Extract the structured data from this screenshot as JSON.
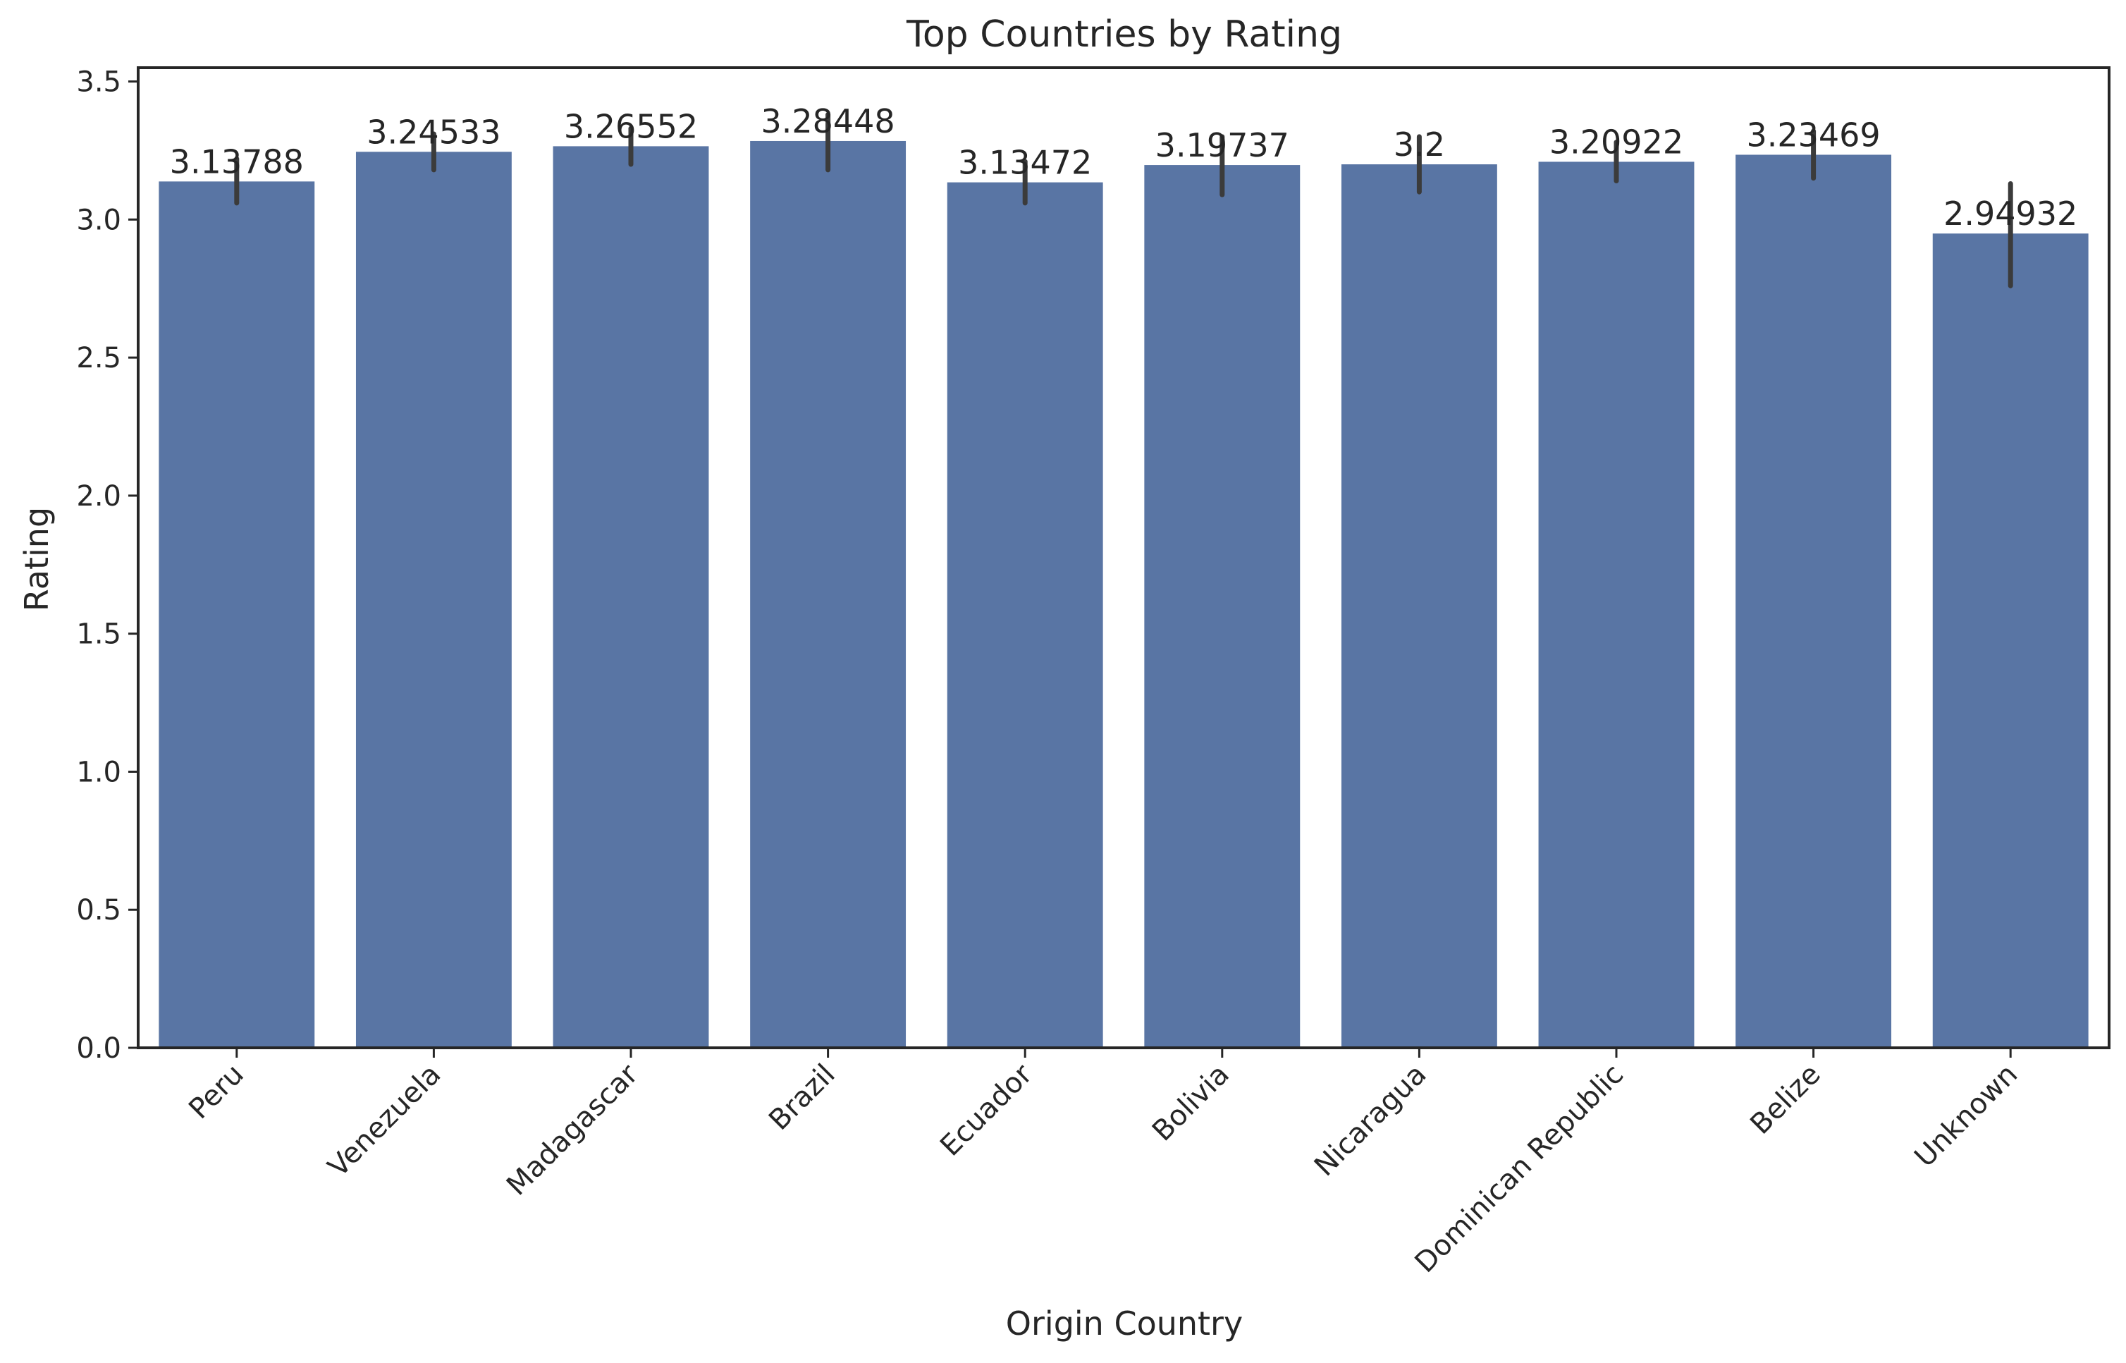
{
  "chart_data": {
    "type": "bar",
    "title": "Top Countries by Rating",
    "xlabel": "Origin Country",
    "ylabel": "Rating",
    "categories": [
      "Peru",
      "Venezuela",
      "Madagascar",
      "Brazil",
      "Ecuador",
      "Bolivia",
      "Nicaragua",
      "Dominican Republic",
      "Belize",
      "Unknown"
    ],
    "values": [
      3.13788,
      3.24533,
      3.26552,
      3.28448,
      3.13472,
      3.19737,
      3.2,
      3.20922,
      3.23469,
      2.94932
    ],
    "value_labels": [
      "3.13788",
      "3.24533",
      "3.26552",
      "3.28448",
      "3.13472",
      "3.19737",
      "3.2",
      "3.20922",
      "3.23469",
      "2.94932"
    ],
    "error_bars": [
      [
        3.06,
        3.22
      ],
      [
        3.18,
        3.31
      ],
      [
        3.2,
        3.33
      ],
      [
        3.18,
        3.38
      ],
      [
        3.06,
        3.21
      ],
      [
        3.09,
        3.3
      ],
      [
        3.1,
        3.3
      ],
      [
        3.14,
        3.28
      ],
      [
        3.15,
        3.32
      ],
      [
        2.76,
        3.13
      ]
    ],
    "ylim": [
      0,
      3.55
    ],
    "yticks": [
      0.0,
      0.5,
      1.0,
      1.5,
      2.0,
      2.5,
      3.0,
      3.5
    ],
    "ytick_labels": [
      "0.0",
      "0.5",
      "1.0",
      "1.5",
      "2.0",
      "2.5",
      "3.0",
      "3.5"
    ],
    "xtick_rotation": 45,
    "grid": false,
    "bar_color": "#5975a4",
    "error_color": "#3b3b3b",
    "axis_color": "#262626"
  }
}
